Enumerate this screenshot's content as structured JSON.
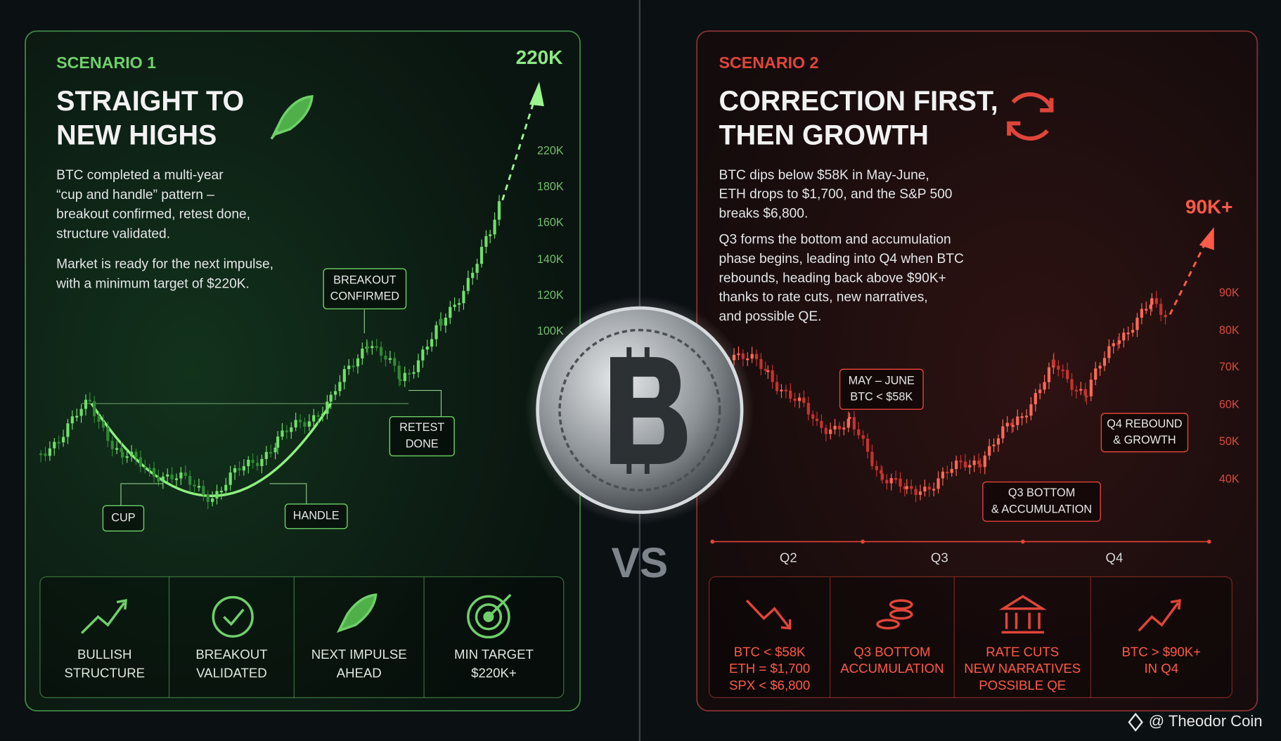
{
  "scenario1": {
    "label": "SCENARIO 1",
    "title_lines": [
      "STRAIGHT TO",
      "NEW HIGHS"
    ],
    "paragraphs": [
      [
        "BTC completed a multi-year",
        "“cup and handle” pattern –",
        "breakout confirmed, retest done,",
        "structure validated."
      ],
      [
        "Market is ready for the next impulse,",
        "with a minimum target of $220K."
      ]
    ],
    "target": "220K",
    "axis_labels": [
      "220K",
      "180K",
      "160K",
      "140K",
      "120K",
      "100K"
    ],
    "callouts": [
      [
        "BREAKOUT",
        "CONFIRMED"
      ],
      [
        "RETEST",
        "DONE"
      ],
      [
        "CUP"
      ],
      [
        "HANDLE"
      ]
    ],
    "features": [
      [
        "BULLISH",
        "STRUCTURE"
      ],
      [
        "BREAKOUT",
        "VALIDATED"
      ],
      [
        "NEXT IMPULSE",
        "AHEAD"
      ],
      [
        "MIN TARGET",
        "$220K+"
      ]
    ]
  },
  "scenario2": {
    "label": "SCENARIO 2",
    "title_lines": [
      "CORRECTION FIRST,",
      "THEN GROWTH"
    ],
    "paragraphs": [
      [
        "BTC dips below $58K in May-June,",
        "ETH drops to $1,700, and the S&P 500",
        "breaks $6,800."
      ],
      [
        "Q3 forms the bottom and accumulation",
        "phase begins, leading into Q4 when BTC",
        "rebounds, heading back above $90K+",
        "thanks to rate cuts, new narratives,",
        "and possible QE."
      ]
    ],
    "target": "90K+",
    "axis_labels": [
      "90K",
      "80K",
      "70K",
      "60K",
      "50K",
      "40K"
    ],
    "callouts": [
      [
        "MAY – JUNE",
        "BTC < $58K"
      ],
      [
        "Q4 REBOUND",
        "& GROWTH"
      ],
      [
        "Q3 BOTTOM",
        "& ACCUMULATION"
      ]
    ],
    "quarters": [
      "Q2",
      "Q3",
      "Q4"
    ],
    "features": [
      [
        "BTC < $58K",
        "ETH = $1,700",
        "SPX < $6,800"
      ],
      [
        "Q3 BOTTOM",
        "ACCUMULATION"
      ],
      [
        "RATE CUTS",
        "NEW NARRATIVES",
        "POSSIBLE QE"
      ],
      [
        "BTC > $90K+",
        "IN Q4"
      ]
    ]
  },
  "vs": "VS",
  "credit": "@ Theodor Coin"
}
